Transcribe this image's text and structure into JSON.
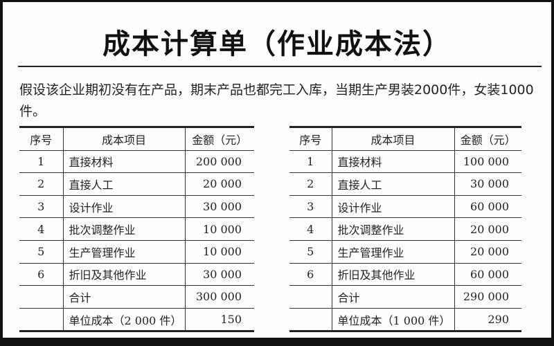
{
  "title": "成本计算单（作业成本法）",
  "intro": "假设该企业期初没有在产品，期末产品也都完工入库，当期生产男装2000件，女装1000件。",
  "headers": {
    "no": "序号",
    "item": "成本项目",
    "amount": "金额（元）"
  },
  "tables": [
    {
      "rows": [
        {
          "no": "1",
          "item": "直接材料",
          "amount": "200 000"
        },
        {
          "no": "2",
          "item": "直接人工",
          "amount": "20 000"
        },
        {
          "no": "3",
          "item": "设计作业",
          "amount": "30 000"
        },
        {
          "no": "4",
          "item": "批次调整作业",
          "amount": "10 000"
        },
        {
          "no": "5",
          "item": "生产管理作业",
          "amount": "10 000"
        },
        {
          "no": "6",
          "item": "折旧及其他作业",
          "amount": "30 000"
        },
        {
          "no": "",
          "item": "合计",
          "amount": "300 000"
        },
        {
          "no": "",
          "item": "单位成本（2 000 件）",
          "amount": "150"
        }
      ]
    },
    {
      "rows": [
        {
          "no": "1",
          "item": "直接材料",
          "amount": "100 000"
        },
        {
          "no": "2",
          "item": "直接人工",
          "amount": "30 000"
        },
        {
          "no": "3",
          "item": "设计作业",
          "amount": "60 000"
        },
        {
          "no": "4",
          "item": "批次调整作业",
          "amount": "20 000"
        },
        {
          "no": "5",
          "item": "生产管理作业",
          "amount": "20 000"
        },
        {
          "no": "6",
          "item": "折旧及其他作业",
          "amount": "60 000"
        },
        {
          "no": "",
          "item": "合计",
          "amount": "290 000"
        },
        {
          "no": "",
          "item": "单位成本（1 000 件）",
          "amount": "290"
        }
      ]
    }
  ]
}
